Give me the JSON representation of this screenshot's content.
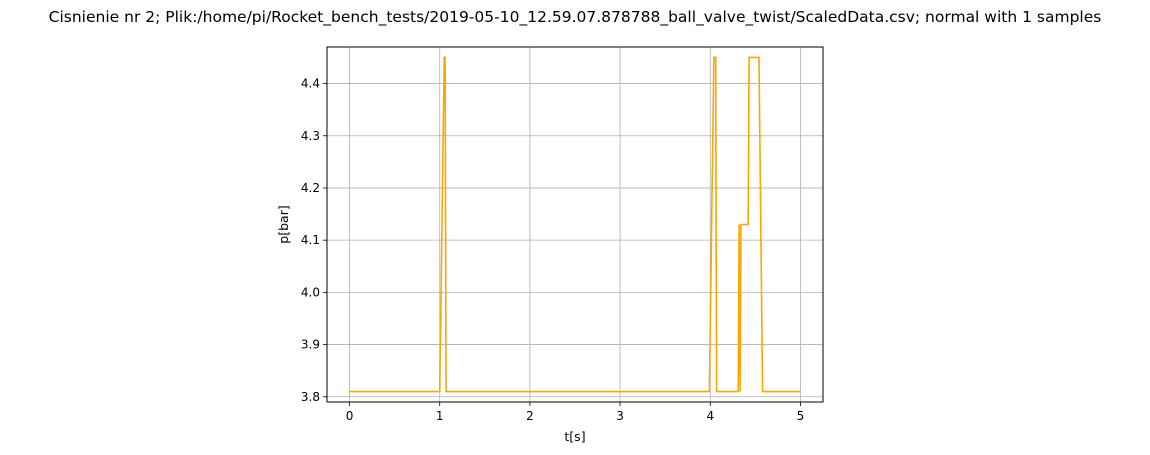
{
  "chart_data": {
    "type": "line",
    "title": "Cisnienie nr 2; Plik:/home/pi/Rocket_bench_tests/2019-05-10_12.59.07.878788_ball_valve_twist/ScaledData.csv; normal with 1 samples",
    "xlabel": "t[s]",
    "ylabel": "p[bar]",
    "xlim": [
      -0.25,
      5.25
    ],
    "ylim": [
      3.79,
      4.47
    ],
    "xticks": [
      0,
      1,
      2,
      3,
      4,
      5
    ],
    "yticks": [
      3.8,
      3.9,
      4.0,
      4.1,
      4.2,
      4.3,
      4.4
    ],
    "xtick_labels": [
      "0",
      "1",
      "2",
      "3",
      "4",
      "5"
    ],
    "ytick_labels": [
      "3.8",
      "3.9",
      "4.0",
      "4.1",
      "4.2",
      "4.3",
      "4.4"
    ],
    "grid": true,
    "series": [
      {
        "color": "#FFA500",
        "x": [
          0,
          1.0,
          1.05,
          1.06,
          1.07,
          1.08,
          3.99,
          4.04,
          4.06,
          4.07,
          4.08,
          4.31,
          4.32,
          4.33,
          4.34,
          4.42,
          4.43,
          4.44,
          4.53,
          4.54,
          4.58,
          4.59,
          5.0
        ],
        "y": [
          3.81,
          3.81,
          4.45,
          4.45,
          3.81,
          3.81,
          3.81,
          4.45,
          4.45,
          3.81,
          3.81,
          3.81,
          4.13,
          3.81,
          4.13,
          4.13,
          4.45,
          4.45,
          4.45,
          4.45,
          3.81,
          3.81,
          3.81
        ]
      }
    ]
  }
}
